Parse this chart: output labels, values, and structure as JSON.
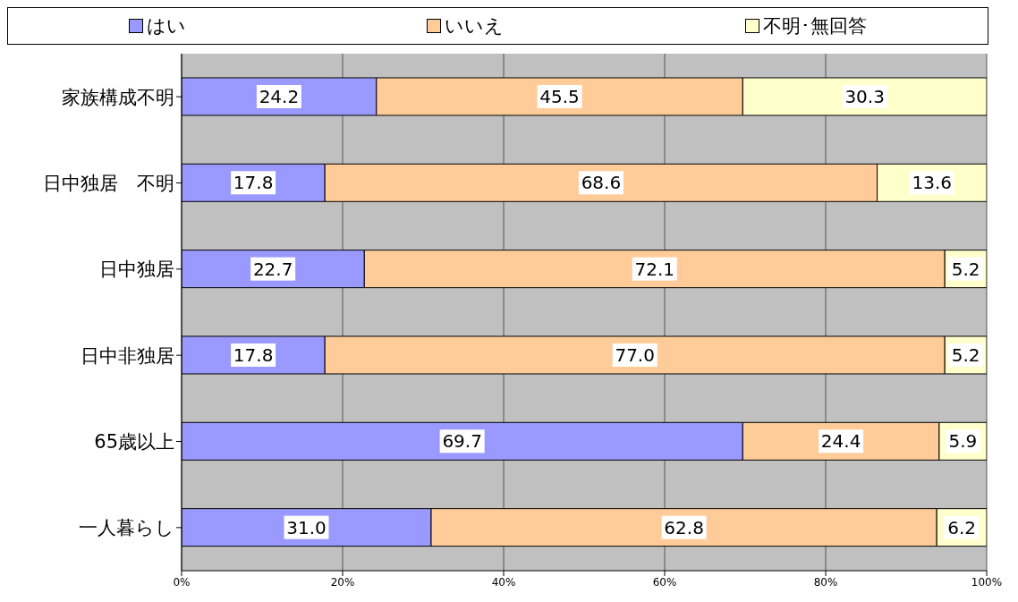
{
  "chart_data": {
    "type": "bar",
    "orientation": "horizontal",
    "stacked": true,
    "categories": [
      "家族構成不明",
      "日中独居　不明",
      "日中独居",
      "日中非独居",
      "65歳以上",
      "一人暮らし"
    ],
    "series": [
      {
        "name": "はい",
        "color": "#9999ff",
        "values": [
          24.2,
          17.8,
          22.7,
          17.8,
          69.7,
          31.0
        ],
        "value_labels": [
          "24.2",
          "17.8",
          "22.7",
          "17.8",
          "69.7",
          "31.0"
        ]
      },
      {
        "name": "いいえ",
        "color": "#ffcc99",
        "values": [
          45.5,
          68.6,
          72.1,
          77.0,
          24.4,
          62.8
        ],
        "value_labels": [
          "45.5",
          "68.6",
          "72.1",
          "77.0",
          "24.4",
          "62.8"
        ]
      },
      {
        "name": "不明･無回答",
        "color": "#ffffcc",
        "values": [
          30.3,
          13.6,
          5.2,
          5.2,
          5.9,
          6.2
        ],
        "value_labels": [
          "30.3",
          "13.6",
          "5.2",
          "5.2",
          "5.9",
          "6.2"
        ]
      }
    ],
    "xlim": [
      0,
      100
    ],
    "xticks": [
      {
        "value": 0,
        "label": "0%"
      },
      {
        "value": 20,
        "label": "20%"
      },
      {
        "value": 40,
        "label": "40%"
      },
      {
        "value": 60,
        "label": "60%"
      },
      {
        "value": 80,
        "label": "80%"
      },
      {
        "value": 100,
        "label": "100%"
      }
    ],
    "grid": "x",
    "legend": "top"
  }
}
